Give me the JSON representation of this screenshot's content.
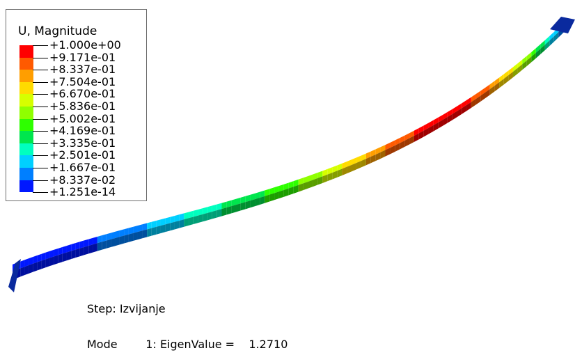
{
  "legend": {
    "title": "U, Magnitude",
    "values": [
      "+1.000e+00",
      "+9.171e-01",
      "+8.337e-01",
      "+7.504e-01",
      "+6.670e-01",
      "+5.836e-01",
      "+5.002e-01",
      "+4.169e-01",
      "+3.335e-01",
      "+2.501e-01",
      "+1.667e-01",
      "+8.337e-02",
      "+1.251e-14"
    ],
    "colors": [
      "#ff0000",
      "#ff5a00",
      "#ff9e00",
      "#ffdb00",
      "#d6ff00",
      "#8fff00",
      "#2eff00",
      "#00e64d",
      "#00ffbf",
      "#00cfff",
      "#007fff",
      "#0018ff"
    ]
  },
  "viewport": {
    "step_line": "Step: Izvijanje",
    "mode_line": "Mode        1: EigenValue =    1.2710"
  }
}
